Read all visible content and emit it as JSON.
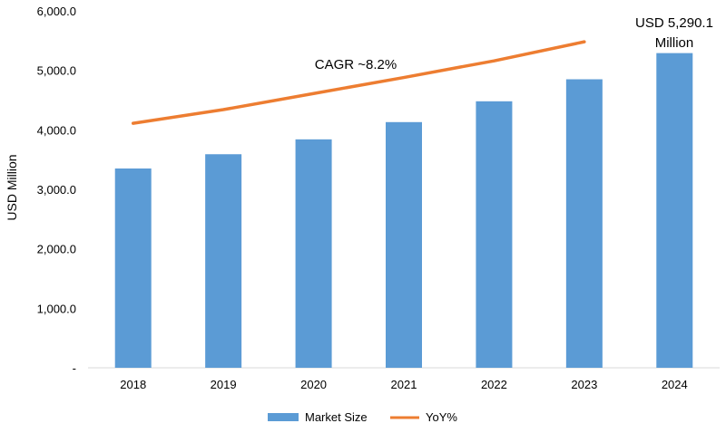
{
  "chart_data": {
    "type": "bar",
    "categories": [
      "2018",
      "2019",
      "2020",
      "2021",
      "2022",
      "2023",
      "2024"
    ],
    "series": [
      {
        "name": "Market Size",
        "kind": "bar",
        "color": "#5b9bd5",
        "values": [
          3350,
          3590,
          3840,
          4130,
          4480,
          4850,
          5290.1
        ]
      },
      {
        "name": "YoY%",
        "kind": "line",
        "color": "#ed7d31",
        "values": [
          4110,
          4340,
          4610,
          4880,
          5160,
          5480,
          null
        ]
      }
    ],
    "ylabel": "USD Million",
    "ylim": [
      0,
      6000
    ],
    "yticks": [
      0,
      1000,
      2000,
      3000,
      4000,
      5000,
      6000
    ],
    "ytick_labels": [
      "-",
      "1,000.0",
      "2,000.0",
      "3,000.0",
      "4,000.0",
      "5,000.0",
      "6,000.0"
    ],
    "annotations": {
      "cagr": "CAGR ~8.2%",
      "last_value_line1": "USD 5,290.1",
      "last_value_line2": "Million"
    },
    "grid": false,
    "legend": "bottom-center"
  }
}
